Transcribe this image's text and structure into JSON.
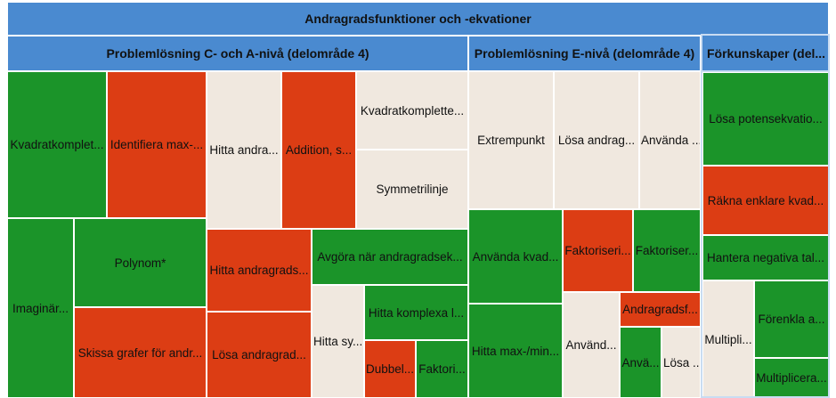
{
  "colors": {
    "header": "#4a8ad0",
    "green": "#1b9429",
    "red": "#dc3d14",
    "beige": "#f0e8df"
  },
  "chart_data": {
    "type": "treemap",
    "title": "Andragradsfunktioner och -ekvationer",
    "groups": [
      {
        "name": "Problemlösning C- och A-nivå (delområde 4)",
        "items": [
          {
            "label": "Kvadratkomplet...",
            "status": "green"
          },
          {
            "label": "Identifiera max-...",
            "status": "red"
          },
          {
            "label": "Hitta andra...",
            "status": "beige"
          },
          {
            "label": "Addition, s...",
            "status": "red"
          },
          {
            "label": "Kvadratkomplette...",
            "status": "beige"
          },
          {
            "label": "Symmetrilinje",
            "status": "beige"
          },
          {
            "label": "Imaginär...",
            "status": "green"
          },
          {
            "label": "Polynom*",
            "status": "green"
          },
          {
            "label": "Skissa grafer för andr...",
            "status": "red"
          },
          {
            "label": "Hitta andragrads...",
            "status": "red"
          },
          {
            "label": "Lösa andragrad...",
            "status": "red"
          },
          {
            "label": "Avgöra när andragradsek...",
            "status": "green"
          },
          {
            "label": "Hitta sy...",
            "status": "beige"
          },
          {
            "label": "Hitta komplexa l...",
            "status": "green"
          },
          {
            "label": "Dubbel...",
            "status": "red"
          },
          {
            "label": "Faktori...",
            "status": "green"
          }
        ]
      },
      {
        "name": "Problemlösning E-nivå (delområde 4)",
        "items": [
          {
            "label": "Extrempunkt",
            "status": "beige"
          },
          {
            "label": "Lösa andrag...",
            "status": "beige"
          },
          {
            "label": "Använda ...",
            "status": "beige"
          },
          {
            "label": "Använda kvad...",
            "status": "green"
          },
          {
            "label": "Faktoriseri...",
            "status": "red"
          },
          {
            "label": "Faktoriser...",
            "status": "green"
          },
          {
            "label": "Hitta max-/min...",
            "status": "green"
          },
          {
            "label": "Använd...",
            "status": "beige"
          },
          {
            "label": "Andragradsf...",
            "status": "red"
          },
          {
            "label": "Anvä...",
            "status": "green"
          },
          {
            "label": "Lösa ...",
            "status": "beige"
          }
        ]
      },
      {
        "name": "Förkunskaper (del...",
        "items": [
          {
            "label": "Lösa potensekvatio...",
            "status": "green"
          },
          {
            "label": "Räkna enklare kvad...",
            "status": "red"
          },
          {
            "label": "Hantera negativa tal...",
            "status": "green"
          },
          {
            "label": "Multipli...",
            "status": "beige"
          },
          {
            "label": "Förenkla a...",
            "status": "green"
          },
          {
            "label": "Multiplicera...",
            "status": "green"
          }
        ]
      }
    ]
  }
}
